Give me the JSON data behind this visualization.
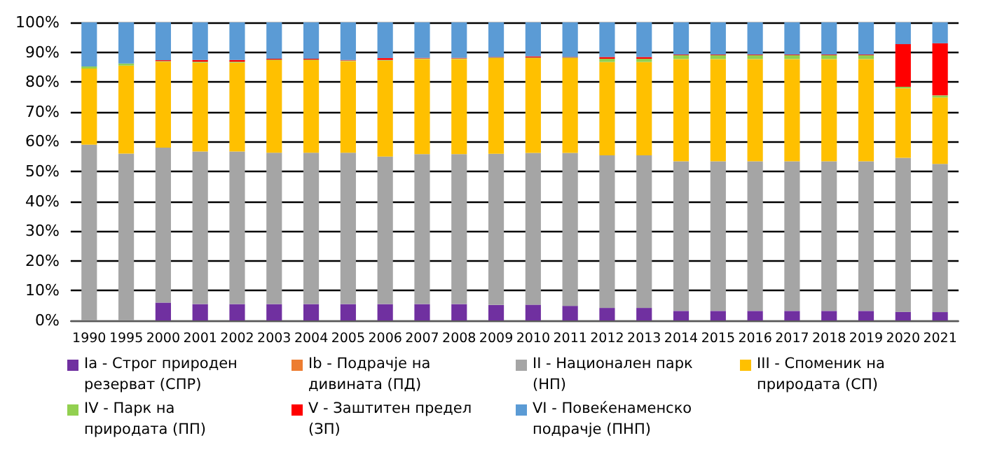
{
  "chart_data": {
    "type": "bar",
    "stacked": true,
    "categories": [
      "1990",
      "1995",
      "2000",
      "2001",
      "2002",
      "2003",
      "2004",
      "2005",
      "2006",
      "2007",
      "2008",
      "2009",
      "2010",
      "2011",
      "2012",
      "2013",
      "2014",
      "2015",
      "2016",
      "2017",
      "2018",
      "2019",
      "2020",
      "2021"
    ],
    "series": [
      {
        "name": "Ia - Строг природен резерват (СПР)",
        "color": "#7030a0",
        "values": [
          0,
          0,
          6,
          5.5,
          5.5,
          5.5,
          5.5,
          5.5,
          5.5,
          5.5,
          5.5,
          5.2,
          5.3,
          4.9,
          4.2,
          4.2,
          3.2,
          3.2,
          3.2,
          3.2,
          3.2,
          3.2,
          2.9,
          2.8
        ]
      },
      {
        "name": "Ib - Подрачје на дивината (ПД)",
        "color": "#ed7d31",
        "values": [
          0,
          0,
          0,
          0,
          0,
          0,
          0,
          0,
          0,
          0,
          0,
          0,
          0,
          0,
          0,
          0,
          0,
          0,
          0,
          0,
          0,
          0,
          0,
          0
        ]
      },
      {
        "name": "II - Национален парк (НП)",
        "color": "#a5a5a5",
        "values": [
          59,
          56,
          52,
          51.2,
          51.2,
          50.8,
          50.8,
          50.8,
          49.5,
          50.3,
          50.3,
          50.7,
          50.9,
          51.3,
          51.2,
          51.2,
          50.2,
          50.2,
          50.2,
          50.2,
          50.2,
          50.2,
          51.7,
          49.7
        ]
      },
      {
        "name": "III - Споменик на природата (СП)",
        "color": "#ffc000",
        "values": [
          25.5,
          29.5,
          28.8,
          29.8,
          29.8,
          31,
          31,
          30.7,
          32.2,
          31.9,
          31.9,
          32.1,
          31.8,
          31.8,
          31.3,
          31.3,
          34.3,
          34.3,
          34.3,
          34.3,
          34.3,
          34.3,
          23.3,
          22.3
        ]
      },
      {
        "name": "IV - Парк на природата (ПП)",
        "color": "#92d050",
        "values": [
          0.7,
          0.7,
          0.2,
          0.3,
          0.3,
          0.2,
          0.2,
          0.2,
          0.2,
          0.2,
          0.2,
          0.2,
          0.2,
          0.2,
          1.1,
          1.1,
          1.3,
          1.3,
          1.3,
          1.3,
          1.3,
          1.3,
          0.5,
          0.7
        ]
      },
      {
        "name": "V - Заштитен предел (ЗП)",
        "color": "#ff0000",
        "values": [
          0,
          0,
          0.3,
          0.6,
          0.6,
          0.3,
          0.3,
          0.2,
          0.6,
          0.2,
          0.2,
          0.2,
          0.4,
          0.2,
          0.6,
          0.6,
          0.2,
          0.2,
          0.2,
          0.2,
          0.2,
          0.2,
          14.3,
          17.5
        ]
      },
      {
        "name": "VI - Повеќенаменско подрачје (ПНП)",
        "color": "#5b9bd5",
        "values": [
          14.8,
          13.8,
          12.7,
          12.6,
          12.6,
          12.2,
          12.2,
          12.6,
          12,
          11.9,
          11.9,
          11.6,
          11.4,
          11.6,
          11.6,
          11.6,
          10.8,
          10.8,
          10.8,
          10.8,
          10.8,
          10.8,
          7.3,
          7.0
        ]
      }
    ],
    "ylim": [
      0,
      100
    ],
    "yticks": [
      {
        "value": 0,
        "label": "0%"
      },
      {
        "value": 10,
        "label": "10%"
      },
      {
        "value": 20,
        "label": "20%"
      },
      {
        "value": 30,
        "label": "30%"
      },
      {
        "value": 40,
        "label": "40%"
      },
      {
        "value": 50,
        "label": "50%"
      },
      {
        "value": 60,
        "label": "60%"
      },
      {
        "value": 70,
        "label": "70%"
      },
      {
        "value": 80,
        "label": "80%"
      },
      {
        "value": 90,
        "label": "90%"
      },
      {
        "value": 100,
        "label": "100%"
      }
    ],
    "grid": "y",
    "legend": "bottom"
  }
}
